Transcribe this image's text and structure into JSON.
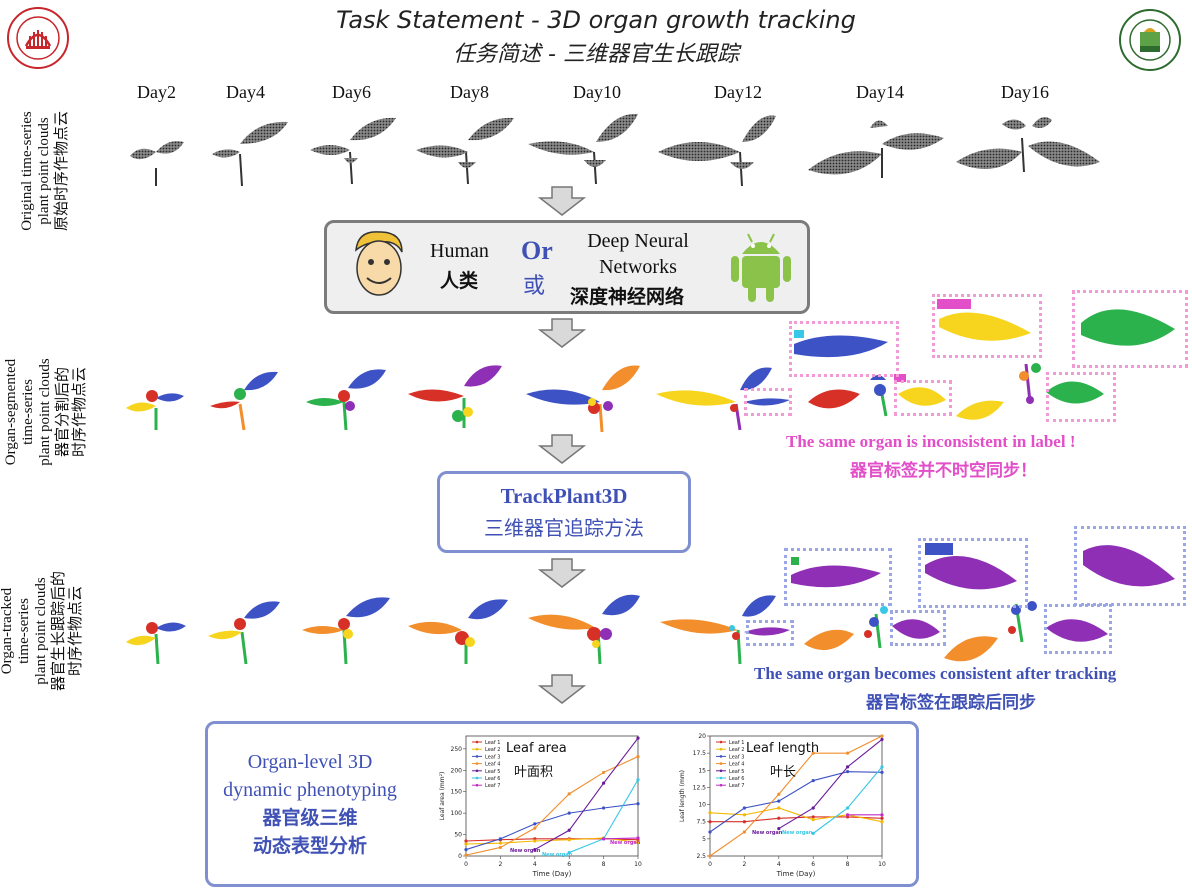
{
  "header": {
    "title_en": "Task Statement - 3D organ growth tracking",
    "title_zh": "任务简述 - 三维器官生长跟踪",
    "logo_left_text": "華南農業大學",
    "logo_right_text": "南京農業大學"
  },
  "days": [
    "Day2",
    "Day4",
    "Day6",
    "Day8",
    "Day10",
    "Day12",
    "Day14",
    "Day16"
  ],
  "row_labels": {
    "original": {
      "en1": "Original time-series",
      "en2": "plant point clouds",
      "zh": "原始时序作物点云"
    },
    "segmented": {
      "en1": "Organ-segmented",
      "en2": "time-series",
      "en3": "plant point clouds",
      "zh1": "器官分割后的",
      "zh2": "时序作物点云"
    },
    "tracked": {
      "en1": "Organ-tracked",
      "en2": "time-series",
      "en3": "plant point clouds",
      "zh1": "器官生长跟踪后的",
      "zh2": "时序作物点云"
    }
  },
  "human_box": {
    "human_en": "Human",
    "human_zh": "人类",
    "or_en": "Or",
    "or_zh": "或",
    "dnn_en1": "Deep Neural",
    "dnn_en2": "Networks",
    "dnn_zh": "深度神经网络"
  },
  "segmented_note": {
    "en": "The same organ is inconsistent in label !",
    "zh": "器官标签并不时空同步！"
  },
  "trackplant_box": {
    "name": "TrackPlant3D",
    "zh": "三维器官追踪方法"
  },
  "tracked_note": {
    "en": "The same organ becomes consistent after tracking",
    "zh": "器官标签在跟踪后同步"
  },
  "phenotyping_box": {
    "en1": "Organ-level 3D",
    "en2": "dynamic phenotyping",
    "zh1": "器官级三维",
    "zh2": "动态表型分析"
  },
  "colors": {
    "accent_blue": "#3f51b5",
    "pink": "#e24fc9",
    "grey_border": "#7b7b7b",
    "blue_border": "#7f8fcf",
    "leaf_colors": [
      "#d73027",
      "#f28e2b",
      "#3d52c4",
      "#8e2fb5",
      "#2bb24c",
      "#f7d51e",
      "#38c7e6"
    ]
  },
  "chart_data": [
    {
      "type": "line",
      "title_en": "Leaf area",
      "title_zh": "叶面积",
      "xlabel": "Time (Day)",
      "ylabel": "Leaf area (mm²)",
      "xlim": [
        0,
        10
      ],
      "ylim": [
        0,
        280
      ],
      "xticks": [
        0,
        2,
        4,
        6,
        8,
        10
      ],
      "yticks": [
        0,
        50,
        100,
        150,
        200,
        250
      ],
      "annotations": [
        "New organ",
        "New organ",
        "New organ"
      ],
      "series": [
        {
          "name": "Leaf 1",
          "color": "#d73027",
          "x": [
            0,
            2,
            4,
            6,
            8,
            10
          ],
          "y": [
            35,
            38,
            40,
            40,
            40,
            38
          ]
        },
        {
          "name": "Leaf 2",
          "color": "#f5b800",
          "x": [
            0,
            2,
            4,
            6,
            8,
            10
          ],
          "y": [
            28,
            30,
            35,
            38,
            42,
            32
          ]
        },
        {
          "name": "Leaf 3",
          "color": "#3d52c4",
          "x": [
            0,
            2,
            4,
            6,
            8,
            10
          ],
          "y": [
            15,
            40,
            75,
            100,
            112,
            122
          ]
        },
        {
          "name": "Leaf 4",
          "color": "#f28e2b",
          "x": [
            0,
            2,
            4,
            6,
            8,
            10
          ],
          "y": [
            2,
            20,
            65,
            145,
            195,
            232
          ]
        },
        {
          "name": "Leaf 5",
          "color": "#6a1b9a",
          "x": [
            4,
            6,
            8,
            10
          ],
          "y": [
            15,
            60,
            170,
            275
          ]
        },
        {
          "name": "Leaf 6",
          "color": "#38c7e6",
          "x": [
            6,
            8,
            10
          ],
          "y": [
            8,
            40,
            178
          ]
        },
        {
          "name": "Leaf 7",
          "color": "#c02cc9",
          "x": [
            8,
            10
          ],
          "y": [
            40,
            42
          ]
        }
      ]
    },
    {
      "type": "line",
      "title_en": "Leaf length",
      "title_zh": "叶长",
      "xlabel": "Time (Day)",
      "ylabel": "Leaf length (mm)",
      "xlim": [
        0,
        10
      ],
      "ylim": [
        2.5,
        20
      ],
      "xticks": [
        0,
        2,
        4,
        6,
        8,
        10
      ],
      "yticks": [
        2.5,
        5.0,
        7.5,
        10.0,
        12.5,
        15.0,
        17.5,
        20.0
      ],
      "annotations": [
        "New organ",
        "New organ"
      ],
      "series": [
        {
          "name": "Leaf 1",
          "color": "#d73027",
          "x": [
            0,
            2,
            4,
            6,
            8,
            10
          ],
          "y": [
            7.5,
            7.5,
            8,
            8.2,
            8.2,
            8
          ]
        },
        {
          "name": "Leaf 2",
          "color": "#f5b800",
          "x": [
            0,
            2,
            4,
            6,
            8,
            10
          ],
          "y": [
            8.8,
            8.5,
            9.5,
            7.8,
            8.5,
            7.5
          ]
        },
        {
          "name": "Leaf 3",
          "color": "#3d52c4",
          "x": [
            0,
            2,
            4,
            6,
            8,
            10
          ],
          "y": [
            6,
            9.5,
            10.5,
            13.5,
            14.8,
            14.7
          ]
        },
        {
          "name": "Leaf 4",
          "color": "#f28e2b",
          "x": [
            0,
            2,
            4,
            6,
            8,
            10
          ],
          "y": [
            2.5,
            6,
            11.5,
            17.5,
            17.5,
            20
          ]
        },
        {
          "name": "Leaf 5",
          "color": "#6a1b9a",
          "x": [
            4,
            6,
            8,
            10
          ],
          "y": [
            6.5,
            9.5,
            15.5,
            19.5
          ]
        },
        {
          "name": "Leaf 6",
          "color": "#38c7e6",
          "x": [
            6,
            8,
            10
          ],
          "y": [
            5.8,
            9.5,
            15.5
          ]
        },
        {
          "name": "Leaf 7",
          "color": "#c02cc9",
          "x": [
            8,
            10
          ],
          "y": [
            8.5,
            8.5
          ]
        }
      ]
    }
  ]
}
